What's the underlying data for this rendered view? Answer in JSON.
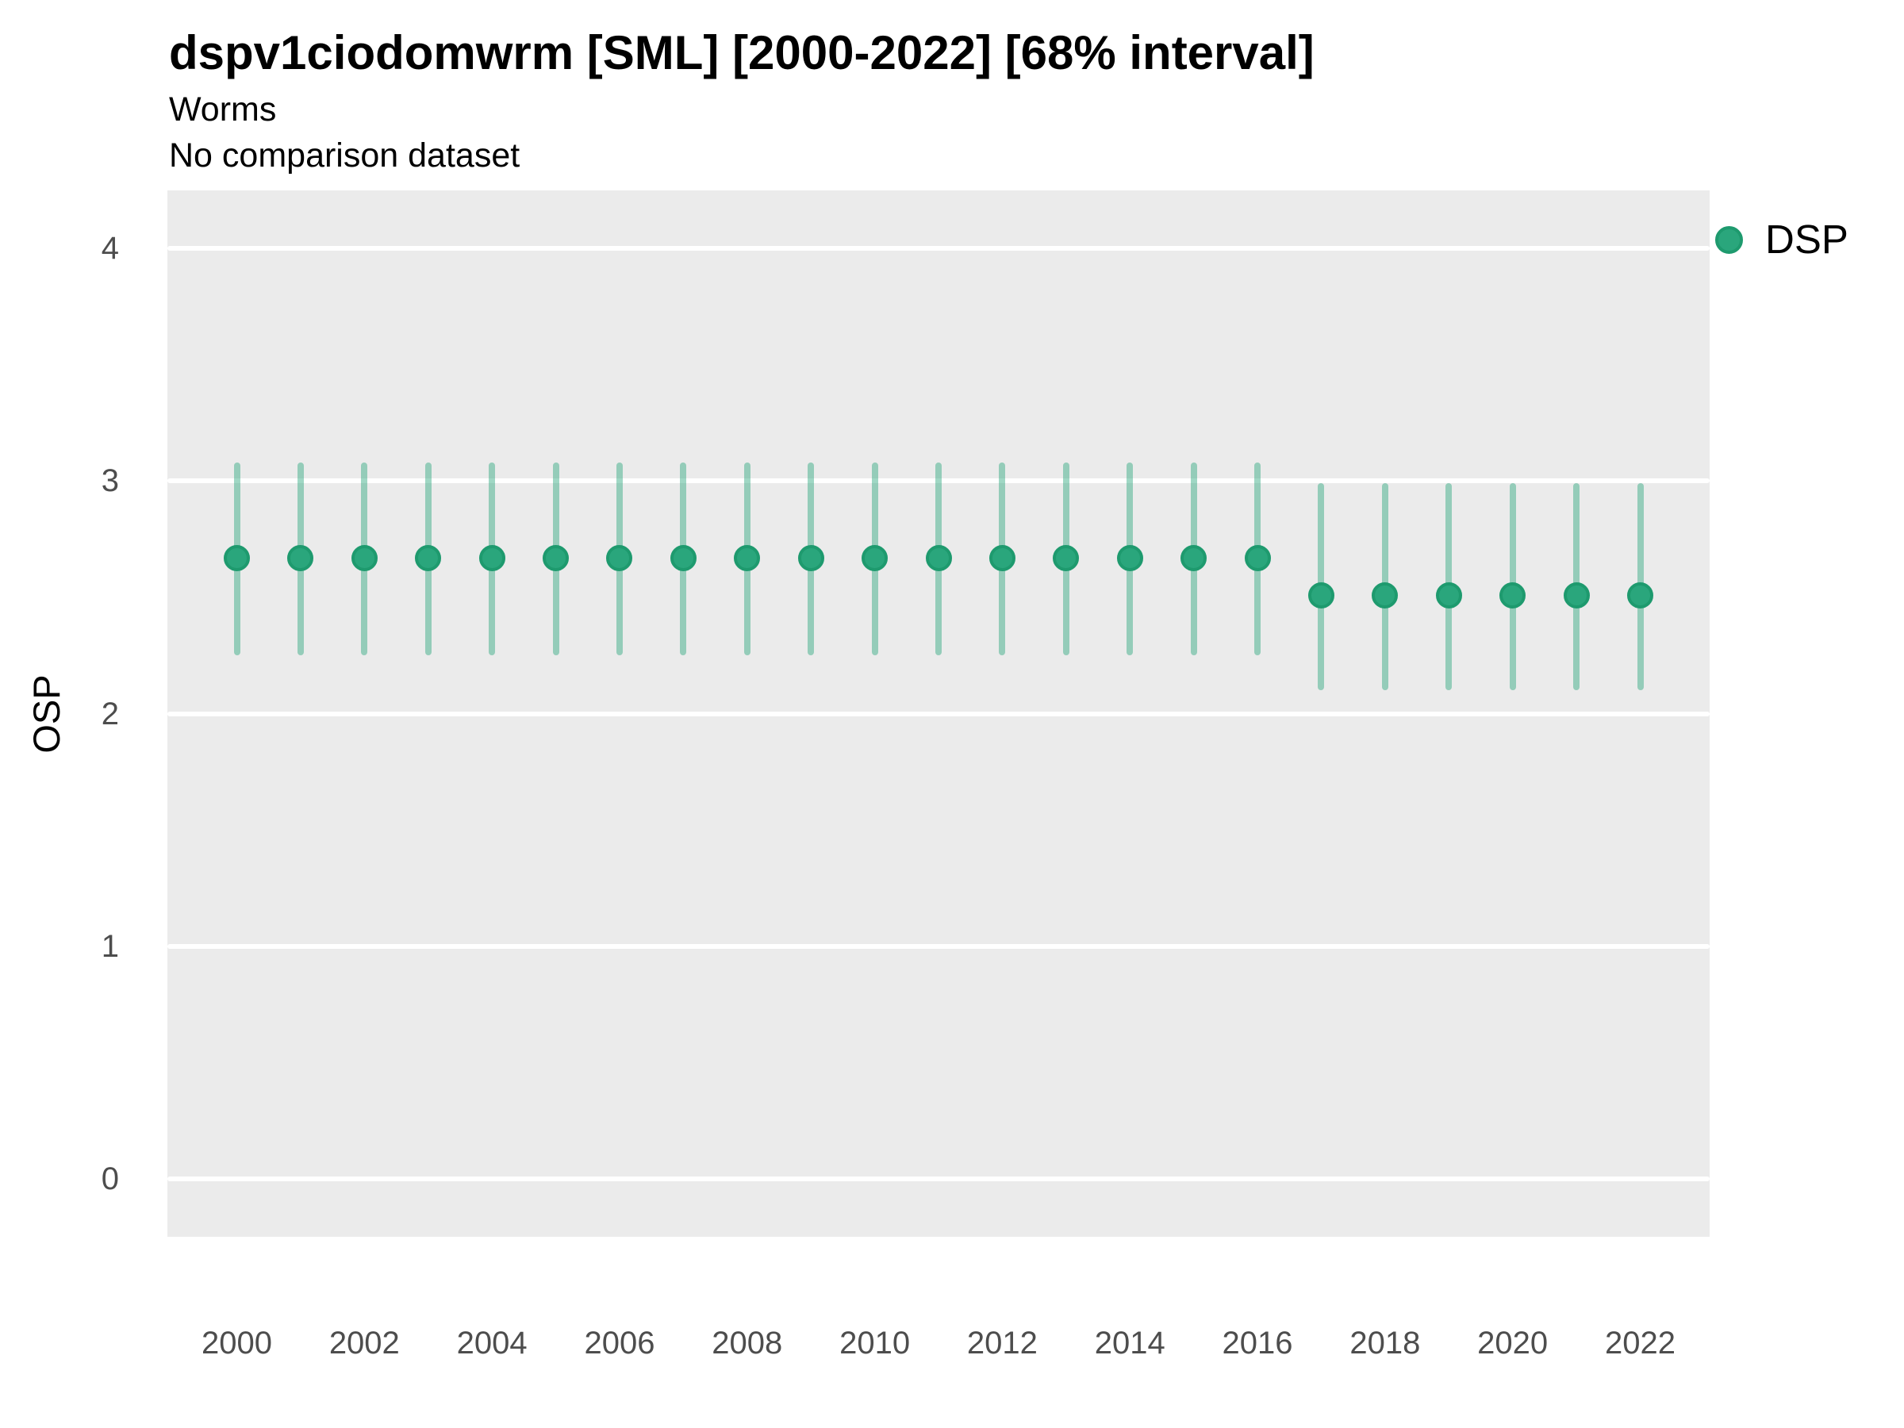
{
  "colors": {
    "point_fill": "#2AA67C",
    "point_stroke": "#1E9A6E",
    "interval_line": "rgba(42,166,124,0.45)",
    "panel_background": "#EBEBEB",
    "gridline": "#FFFFFF",
    "tick_text": "#4D4D4D",
    "title_text": "#000000"
  },
  "chart_data": {
    "type": "pointrange",
    "title": "dspv1ciodomwrm [SML] [2000-2022] [68% interval]",
    "subtitle": "Worms",
    "caption": "No comparison dataset",
    "interval": "68%",
    "xlabel": "",
    "ylabel": "OSP",
    "ylim": [
      -0.25,
      4.25
    ],
    "yticks": [
      0,
      1,
      2,
      3,
      4
    ],
    "xtick_labels": [
      "2000",
      "2002",
      "2004",
      "2006",
      "2008",
      "2010",
      "2012",
      "2014",
      "2016",
      "2018",
      "2020",
      "2022"
    ],
    "grid": "major-horizontal-only",
    "legend": {
      "position": "right",
      "entries": [
        {
          "label": "DSP",
          "color": "#2AA67C"
        }
      ]
    },
    "series": [
      {
        "name": "DSP",
        "x": [
          2000,
          2001,
          2002,
          2003,
          2004,
          2005,
          2006,
          2007,
          2008,
          2009,
          2010,
          2011,
          2012,
          2013,
          2014,
          2015,
          2016,
          2017,
          2018,
          2019,
          2020,
          2021,
          2022
        ],
        "y": [
          2.67,
          2.67,
          2.67,
          2.67,
          2.67,
          2.67,
          2.67,
          2.67,
          2.67,
          2.67,
          2.67,
          2.67,
          2.67,
          2.67,
          2.67,
          2.67,
          2.67,
          2.51,
          2.51,
          2.51,
          2.51,
          2.51,
          2.51
        ],
        "ylo": [
          2.25,
          2.25,
          2.25,
          2.25,
          2.25,
          2.25,
          2.25,
          2.25,
          2.25,
          2.25,
          2.25,
          2.25,
          2.25,
          2.25,
          2.25,
          2.25,
          2.25,
          2.1,
          2.1,
          2.1,
          2.1,
          2.1,
          2.1
        ],
        "yhi": [
          3.08,
          3.08,
          3.08,
          3.08,
          3.08,
          3.08,
          3.08,
          3.08,
          3.08,
          3.08,
          3.08,
          3.08,
          3.08,
          3.08,
          3.08,
          3.08,
          3.08,
          2.99,
          2.99,
          2.99,
          2.99,
          2.99,
          2.99
        ]
      }
    ]
  }
}
